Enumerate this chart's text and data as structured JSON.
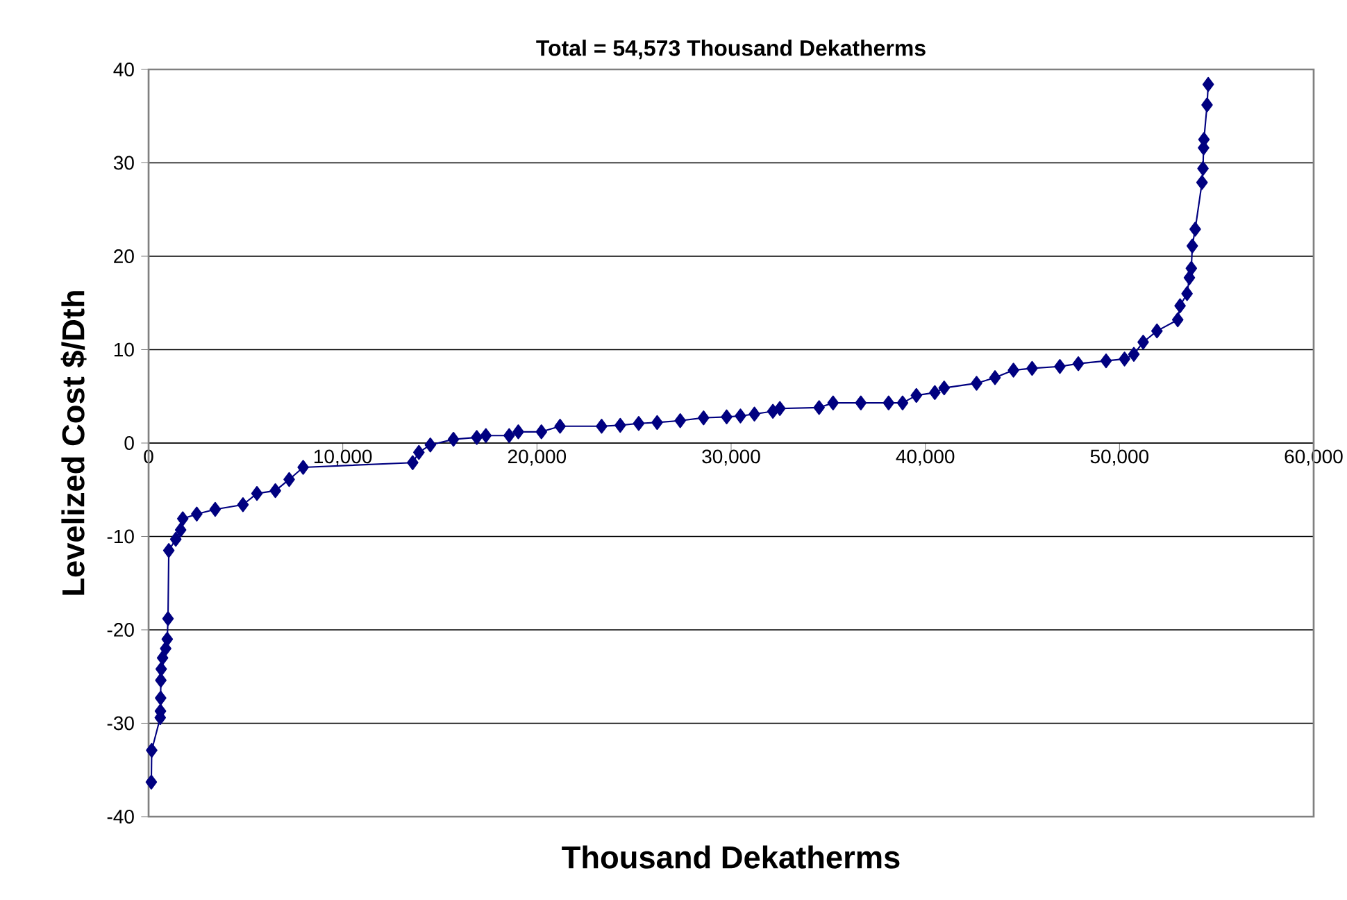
{
  "chart_data": {
    "type": "line",
    "title": "Total = 54,573 Thousand Dekatherms",
    "xlabel": "Thousand Dekatherms",
    "ylabel": "Levelized Cost $/Dth",
    "x": [
      140,
      160,
      600,
      610,
      620,
      630,
      650,
      720,
      880,
      960,
      1000,
      1040,
      1400,
      1650,
      1760,
      2480,
      3430,
      4860,
      5580,
      6530,
      7240,
      7960,
      13600,
      13920,
      14510,
      15700,
      16900,
      17370,
      18570,
      19040,
      20230,
      21190,
      23330,
      24290,
      25240,
      26190,
      27380,
      28580,
      29770,
      30480,
      31200,
      32150,
      32510,
      34530,
      35250,
      36680,
      38110,
      38830,
      39540,
      40490,
      40970,
      42640,
      43590,
      44540,
      45500,
      46930,
      47880,
      49310,
      50260,
      50740,
      51220,
      51930,
      53000,
      53120,
      53480,
      53600,
      53700,
      53750,
      53900,
      54250,
      54300,
      54330,
      54350,
      54510,
      54570
    ],
    "values": [
      -36.3,
      -32.9,
      -29.4,
      -28.7,
      -27.3,
      -25.4,
      -24.2,
      -23.0,
      -22.0,
      -21.0,
      -18.8,
      -11.5,
      -10.3,
      -9.3,
      -8.1,
      -7.6,
      -7.1,
      -6.6,
      -5.4,
      -5.1,
      -3.9,
      -2.6,
      -2.1,
      -1.0,
      -0.2,
      0.4,
      0.6,
      0.8,
      0.8,
      1.2,
      1.2,
      1.8,
      1.8,
      1.9,
      2.1,
      2.2,
      2.4,
      2.7,
      2.8,
      2.9,
      3.1,
      3.4,
      3.7,
      3.8,
      4.3,
      4.3,
      4.3,
      4.3,
      5.1,
      5.4,
      5.9,
      6.4,
      7.0,
      7.8,
      8.0,
      8.2,
      8.5,
      8.8,
      9.0,
      9.5,
      10.8,
      12.0,
      13.2,
      14.7,
      16.0,
      17.7,
      18.7,
      21.1,
      22.9,
      27.9,
      29.4,
      31.6,
      32.5,
      36.2,
      38.4
    ],
    "color": "#000080",
    "marker": "diamond",
    "line_style": "solid",
    "grid": "y",
    "xlim": [
      0,
      60000
    ],
    "ylim": [
      -40,
      40
    ],
    "xticks": [
      0,
      {
        "value": 10000,
        "label": "10,000"
      },
      {
        "value": 20000,
        "label": "20,000"
      },
      {
        "value": 30000,
        "label": "30,000"
      },
      {
        "value": 40000,
        "label": "40,000"
      },
      {
        "value": 50000,
        "label": "50,000"
      },
      {
        "value": 60000,
        "label": "60,000"
      }
    ],
    "yticks": [
      -40,
      -30,
      -20,
      -10,
      0,
      10,
      20,
      30,
      40
    ]
  }
}
